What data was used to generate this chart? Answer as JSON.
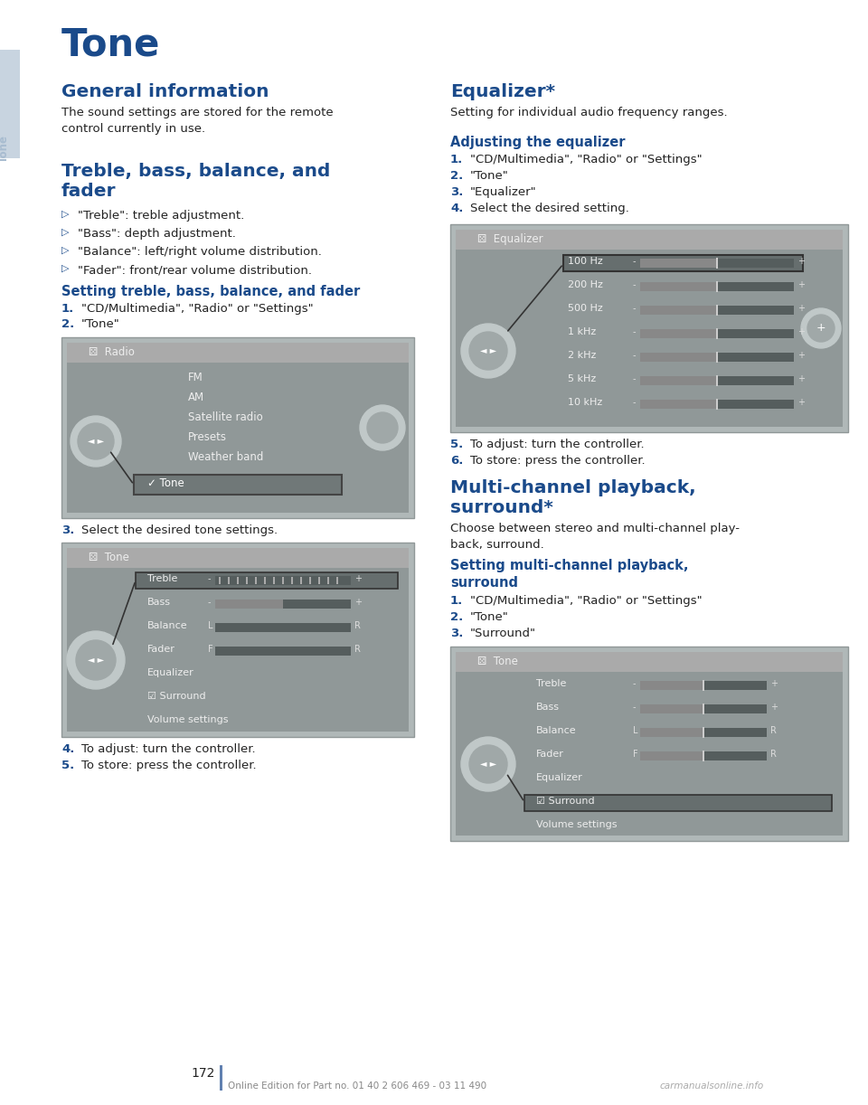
{
  "bg_color": "#ffffff",
  "title": "Tone",
  "title_color": "#1a4a8a",
  "section_header_color": "#1a4a8a",
  "body_color": "#222222",
  "subsection_color": "#1a4a8a",
  "bullet_color": "#1a4a8a",
  "screen_bg": "#888888",
  "screen_header_bg": "#999999",
  "screen_text": "#ffffff",
  "screen_selected_bg": "#555555",
  "screen_bar_bg": "#aaaaaa",
  "screen_bar_fill": "#777777",
  "tab_color": "#a8bcd0",
  "tab_text_color": "#a8bcd0",
  "line_color": "#c0ccd8",
  "page_number": "172",
  "footer_text": "Online Edition for Part no. 01 40 2 606 469 - 03 11 490",
  "footer_watermark": "carmanualsonline.info",
  "footer_color": "#888888"
}
